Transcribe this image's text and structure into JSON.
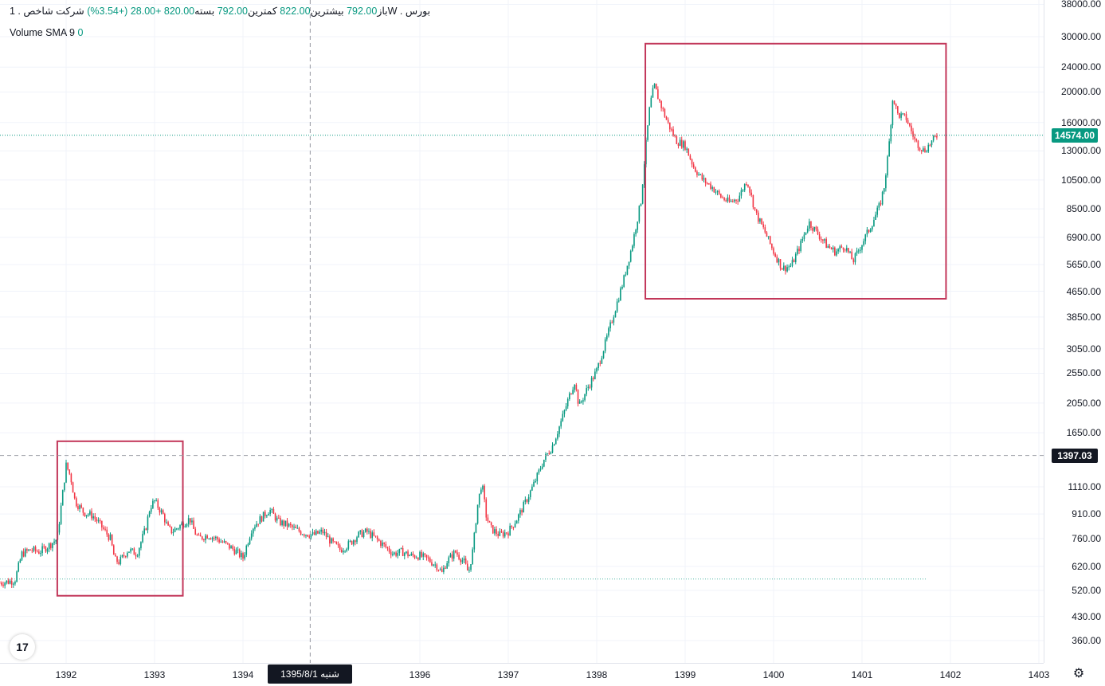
{
  "legend": {
    "symbol": "شرکت شاخص . 1W . بورس",
    "open_label": "باز",
    "open_value": "792.00",
    "high_label": "بیشترین",
    "high_value": "822.00",
    "low_label": "کمترین",
    "low_value": "792.00",
    "close_label": "بسته",
    "close_value": "820.00",
    "change_value": "+28.00",
    "change_pct": "(+3.54%)",
    "indicator_label": "Volume SMA 9",
    "indicator_value": "0"
  },
  "date_label": "شنبه   1395/8/1",
  "tv_logo_label": "17",
  "settings_icon": "gear-icon",
  "colors": {
    "up": "#089981",
    "down": "#f23645",
    "box": "#c2375a",
    "last_price_bg": "#089981",
    "crosshair_bg": "#131722"
  },
  "chart_data": {
    "type": "candlestick",
    "scale": "log",
    "y_ticks": [
      "38000.00",
      "30000.00",
      "24000.00",
      "20000.00",
      "16000.00",
      "13000.00",
      "10500.00",
      "8500.00",
      "6900.00",
      "5650.00",
      "4650.00",
      "3850.00",
      "3050.00",
      "2550.00",
      "2050.00",
      "1650.00",
      "1110.00",
      "910.00",
      "760.00",
      "620.00",
      "520.00",
      "430.00",
      "360.00"
    ],
    "y_tick_values": [
      38000,
      30000,
      24000,
      20000,
      16000,
      13000,
      10500,
      8500,
      6900,
      5650,
      4650,
      3850,
      3050,
      2550,
      2050,
      1650,
      1110,
      910,
      760,
      620,
      520,
      430,
      360
    ],
    "x_ticks": [
      "1392",
      "1393",
      "1394",
      "1396",
      "1397",
      "1398",
      "1399",
      "1400",
      "1401",
      "1402",
      "1403"
    ],
    "x_tick_years": [
      1392,
      1393,
      1394,
      1396,
      1397,
      1398,
      1399,
      1400,
      1401,
      1402,
      1403
    ],
    "last_price": "14574.00",
    "last_price_value": 14574,
    "crosshair_price": "1397.03",
    "crosshair_price_value": 1397.03,
    "crosshair_year": 1394.76,
    "reference_level": 565,
    "path": [
      [
        1391.25,
        550
      ],
      [
        1391.35,
        555
      ],
      [
        1391.42,
        560
      ],
      [
        1391.5,
        680
      ],
      [
        1391.6,
        700
      ],
      [
        1391.7,
        690
      ],
      [
        1391.8,
        720
      ],
      [
        1391.9,
        760
      ],
      [
        1391.95,
        1000
      ],
      [
        1392.0,
        1300
      ],
      [
        1392.05,
        1200
      ],
      [
        1392.1,
        1000
      ],
      [
        1392.2,
        920
      ],
      [
        1392.3,
        900
      ],
      [
        1392.4,
        830
      ],
      [
        1392.5,
        760
      ],
      [
        1392.55,
        650
      ],
      [
        1392.6,
        640
      ],
      [
        1392.7,
        700
      ],
      [
        1392.8,
        680
      ],
      [
        1392.9,
        820
      ],
      [
        1392.95,
        960
      ],
      [
        1393.0,
        1000
      ],
      [
        1393.1,
        900
      ],
      [
        1393.15,
        820
      ],
      [
        1393.2,
        800
      ],
      [
        1393.3,
        840
      ],
      [
        1393.4,
        880
      ],
      [
        1393.45,
        800
      ],
      [
        1393.5,
        760
      ],
      [
        1393.6,
        780
      ],
      [
        1393.7,
        760
      ],
      [
        1393.8,
        730
      ],
      [
        1393.9,
        700
      ],
      [
        1394.0,
        660
      ],
      [
        1394.1,
        820
      ],
      [
        1394.2,
        880
      ],
      [
        1394.3,
        940
      ],
      [
        1394.4,
        860
      ],
      [
        1394.5,
        840
      ],
      [
        1394.6,
        810
      ],
      [
        1394.7,
        790
      ],
      [
        1394.8,
        780
      ],
      [
        1394.9,
        800
      ],
      [
        1395.0,
        740
      ],
      [
        1395.1,
        700
      ],
      [
        1395.2,
        730
      ],
      [
        1395.3,
        780
      ],
      [
        1395.4,
        800
      ],
      [
        1395.5,
        760
      ],
      [
        1395.6,
        720
      ],
      [
        1395.7,
        680
      ],
      [
        1395.8,
        690
      ],
      [
        1395.9,
        670
      ],
      [
        1396.0,
        670
      ],
      [
        1396.1,
        650
      ],
      [
        1396.2,
        620
      ],
      [
        1396.25,
        590
      ],
      [
        1396.3,
        640
      ],
      [
        1396.4,
        690
      ],
      [
        1396.5,
        640
      ],
      [
        1396.55,
        590
      ],
      [
        1396.6,
        700
      ],
      [
        1396.65,
        960
      ],
      [
        1396.7,
        1150
      ],
      [
        1396.75,
        900
      ],
      [
        1396.8,
        820
      ],
      [
        1396.9,
        780
      ],
      [
        1397.0,
        800
      ],
      [
        1397.1,
        880
      ],
      [
        1397.2,
        1000
      ],
      [
        1397.3,
        1150
      ],
      [
        1397.4,
        1350
      ],
      [
        1397.5,
        1500
      ],
      [
        1397.6,
        1800
      ],
      [
        1397.7,
        2200
      ],
      [
        1397.75,
        2400
      ],
      [
        1397.8,
        2000
      ],
      [
        1397.9,
        2300
      ],
      [
        1398.0,
        2600
      ],
      [
        1398.1,
        3200
      ],
      [
        1398.2,
        4000
      ],
      [
        1398.3,
        5000
      ],
      [
        1398.4,
        6500
      ],
      [
        1398.5,
        9000
      ],
      [
        1398.55,
        13000
      ],
      [
        1398.6,
        18000
      ],
      [
        1398.65,
        21000
      ],
      [
        1398.7,
        19000
      ],
      [
        1398.8,
        16000
      ],
      [
        1398.9,
        14000
      ],
      [
        1399.0,
        13500
      ],
      [
        1399.1,
        11500
      ],
      [
        1399.2,
        10500
      ],
      [
        1399.3,
        10000
      ],
      [
        1399.4,
        9300
      ],
      [
        1399.5,
        8900
      ],
      [
        1399.6,
        9200
      ],
      [
        1399.7,
        10500
      ],
      [
        1399.8,
        8200
      ],
      [
        1399.9,
        7200
      ],
      [
        1400.0,
        6200
      ],
      [
        1400.1,
        5500
      ],
      [
        1400.2,
        5600
      ],
      [
        1400.3,
        6500
      ],
      [
        1400.4,
        7700
      ],
      [
        1400.5,
        7100
      ],
      [
        1400.6,
        6500
      ],
      [
        1400.7,
        6200
      ],
      [
        1400.8,
        6500
      ],
      [
        1400.9,
        5800
      ],
      [
        1401.0,
        6600
      ],
      [
        1401.1,
        7500
      ],
      [
        1401.2,
        8700
      ],
      [
        1401.25,
        10000
      ],
      [
        1401.3,
        13000
      ],
      [
        1401.35,
        19500
      ],
      [
        1401.4,
        17000
      ],
      [
        1401.5,
        16500
      ],
      [
        1401.6,
        14000
      ],
      [
        1401.7,
        13000
      ],
      [
        1401.8,
        14000
      ],
      [
        1401.85,
        14574
      ]
    ],
    "annotations": [
      {
        "type": "rectangle",
        "x_start": 1391.9,
        "x_end": 1393.32,
        "y_low": 500,
        "y_high": 1550
      },
      {
        "type": "rectangle",
        "x_start": 1398.55,
        "x_end": 1401.95,
        "y_low": 4400,
        "y_high": 28500
      }
    ]
  }
}
